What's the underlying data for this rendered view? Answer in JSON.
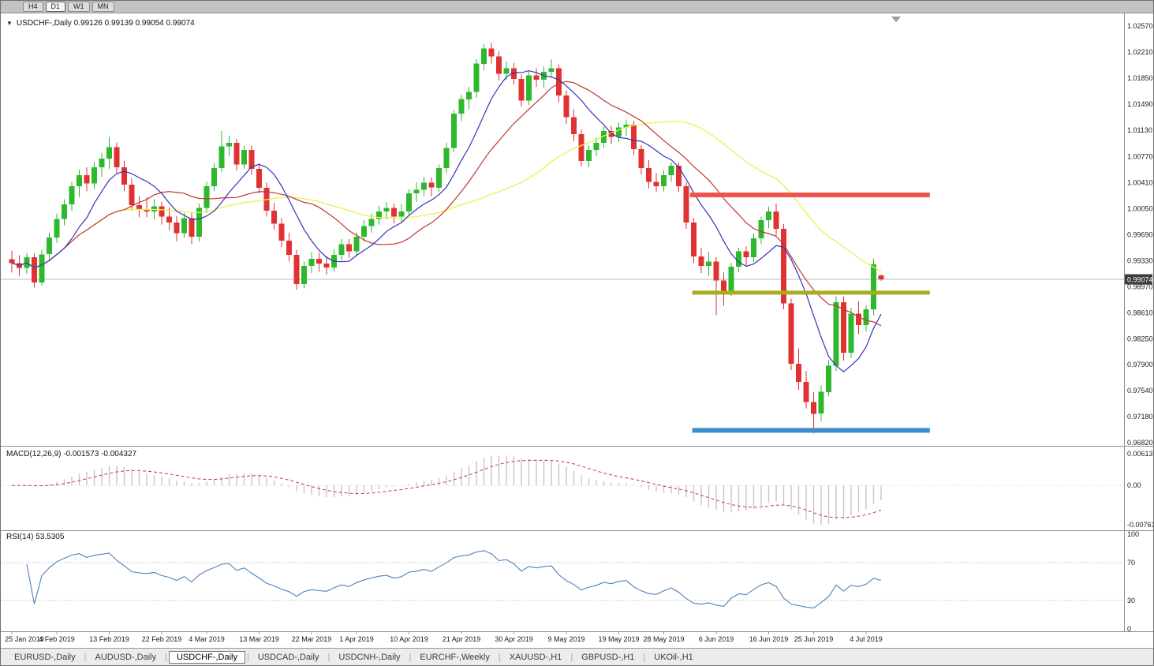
{
  "toolbar": {
    "timeframes": [
      {
        "label": "H4",
        "active": false
      },
      {
        "label": "D1",
        "active": true
      },
      {
        "label": "W1",
        "active": false
      },
      {
        "label": "MN",
        "active": false
      }
    ]
  },
  "icons": {
    "collapse": "▼",
    "shift_marker": "triangle-down"
  },
  "panels": {
    "main_label": "USDCHF-,Daily 0.99126 0.99139 0.99054 0.99074",
    "macd_label": "MACD(12,26,9) -0.001573 -0.004327",
    "rsi_label": "RSI(14) 53.5305"
  },
  "tabbar": {
    "tabs": [
      {
        "label": "EURUSD-,Daily",
        "active": false
      },
      {
        "label": "AUDUSD-,Daily",
        "active": false
      },
      {
        "label": "USDCHF-,Daily",
        "active": true
      },
      {
        "label": "USDCAD-,Daily",
        "active": false
      },
      {
        "label": "USDCNH-,Daily",
        "active": false
      },
      {
        "label": "EURCHF-,Weekly",
        "active": false
      },
      {
        "label": "XAUUSD-,H1",
        "active": false
      },
      {
        "label": "GBPUSD-,H1",
        "active": false
      },
      {
        "label": "UKOil-,H1",
        "active": false
      }
    ]
  },
  "chart_data": {
    "type": "candlestick",
    "symbol": "USDCHF-",
    "period": "Daily",
    "ohlc": {
      "open": "0.99126",
      "high": "0.99139",
      "low": "0.99054",
      "close": "0.99074"
    },
    "current_price": "0.99074",
    "y_ticks": [
      "1.02570",
      "1.02210",
      "1.01850",
      "1.01490",
      "1.01130",
      "1.00770",
      "1.00410",
      "1.00050",
      "0.99690",
      "0.99330",
      "0.98970",
      "0.98610",
      "0.98250",
      "0.97900",
      "0.97540",
      "0.97180",
      "0.96820"
    ],
    "x_ticks": [
      {
        "label": "25 Jan 2019",
        "i": 0
      },
      {
        "label": "4 Feb 2019",
        "i": 6
      },
      {
        "label": "13 Feb 2019",
        "i": 13
      },
      {
        "label": "22 Feb 2019",
        "i": 20
      },
      {
        "label": "4 Mar 2019",
        "i": 26
      },
      {
        "label": "13 Mar 2019",
        "i": 33
      },
      {
        "label": "22 Mar 2019",
        "i": 40
      },
      {
        "label": "1 Apr 2019",
        "i": 46
      },
      {
        "label": "10 Apr 2019",
        "i": 53
      },
      {
        "label": "21 Apr 2019",
        "i": 60
      },
      {
        "label": "30 Apr 2019",
        "i": 67
      },
      {
        "label": "9 May 2019",
        "i": 74
      },
      {
        "label": "19 May 2019",
        "i": 81
      },
      {
        "label": "28 May 2019",
        "i": 87
      },
      {
        "label": "6 Jun 2019",
        "i": 94
      },
      {
        "label": "16 Jun 2019",
        "i": 101
      },
      {
        "label": "25 Jun 2019",
        "i": 107
      },
      {
        "label": "4 Jul 2019",
        "i": 114
      }
    ],
    "candles": [
      [
        0.9935,
        0.9947,
        0.9917,
        0.993
      ],
      [
        0.993,
        0.9941,
        0.9912,
        0.9923
      ],
      [
        0.9923,
        0.9944,
        0.9915,
        0.9938
      ],
      [
        0.9938,
        0.9943,
        0.9896,
        0.9903
      ],
      [
        0.9903,
        0.9948,
        0.9899,
        0.9942
      ],
      [
        0.9942,
        0.9972,
        0.9932,
        0.9965
      ],
      [
        0.9965,
        0.9998,
        0.9958,
        0.9991
      ],
      [
        0.9991,
        1.0018,
        0.9982,
        1.0011
      ],
      [
        1.0011,
        1.0042,
        1.0002,
        1.0036
      ],
      [
        1.0036,
        1.0059,
        1.0021,
        1.0051
      ],
      [
        1.0051,
        1.0062,
        1.0029,
        1.004
      ],
      [
        1.004,
        1.0069,
        1.0032,
        1.0062
      ],
      [
        1.0062,
        1.0082,
        1.0049,
        1.0074
      ],
      [
        1.0074,
        1.0104,
        1.006,
        1.009
      ],
      [
        1.009,
        1.0096,
        1.0053,
        1.0062
      ],
      [
        1.0062,
        1.0071,
        1.0029,
        1.0038
      ],
      [
        1.0038,
        1.0047,
        1.0002,
        1.001
      ],
      [
        1.001,
        1.0022,
        0.9993,
        1.0004
      ],
      [
        1.0004,
        1.0021,
        0.9993,
        1.0001
      ],
      [
        1.0001,
        1.0018,
        0.999,
        1.0008
      ],
      [
        1.0008,
        1.0015,
        0.9983,
        0.9994
      ],
      [
        0.9994,
        1.0007,
        0.9975,
        0.9986
      ],
      [
        0.9986,
        0.9995,
        0.996,
        0.9971
      ],
      [
        0.9971,
        0.9999,
        0.9965,
        0.9992
      ],
      [
        0.9992,
        0.9999,
        0.9956,
        0.9966
      ],
      [
        0.9966,
        1.0012,
        0.996,
        1.0006
      ],
      [
        1.0006,
        1.0042,
        0.9999,
        1.0036
      ],
      [
        1.0036,
        1.0068,
        1.0029,
        1.0061
      ],
      [
        1.0061,
        1.0112,
        1.0055,
        1.0091
      ],
      [
        1.0091,
        1.0106,
        1.0077,
        1.0096
      ],
      [
        1.0096,
        1.0101,
        1.0058,
        1.0066
      ],
      [
        1.0066,
        1.0092,
        1.006,
        1.0086
      ],
      [
        1.0086,
        1.0092,
        1.0052,
        1.006
      ],
      [
        1.006,
        1.0067,
        1.0026,
        1.0034
      ],
      [
        1.0034,
        1.0041,
        0.9994,
        1.0002
      ],
      [
        1.0002,
        1.0013,
        0.9976,
        0.9984
      ],
      [
        0.9984,
        0.9992,
        0.9952,
        0.9961
      ],
      [
        0.9961,
        0.9972,
        0.9932,
        0.9941
      ],
      [
        0.9941,
        0.9948,
        0.9893,
        0.9901
      ],
      [
        0.9901,
        0.9932,
        0.9895,
        0.9926
      ],
      [
        0.9926,
        0.9945,
        0.9916,
        0.9936
      ],
      [
        0.9936,
        0.9944,
        0.9918,
        0.9929
      ],
      [
        0.9929,
        0.994,
        0.9914,
        0.9924
      ],
      [
        0.9924,
        0.9949,
        0.9918,
        0.9941
      ],
      [
        0.9941,
        0.9963,
        0.9933,
        0.9956
      ],
      [
        0.9956,
        0.9963,
        0.9937,
        0.9946
      ],
      [
        0.9946,
        0.9972,
        0.994,
        0.9966
      ],
      [
        0.9966,
        0.9989,
        0.9959,
        0.9981
      ],
      [
        0.9981,
        0.9998,
        0.9972,
        0.9991
      ],
      [
        0.9991,
        1.0009,
        0.9983,
        1.0001
      ],
      [
        1.0001,
        1.0014,
        0.999,
        1.0006
      ],
      [
        1.0006,
        1.0012,
        0.9985,
        0.9994
      ],
      [
        0.9994,
        1.0011,
        0.9987,
        1.0001
      ],
      [
        1.0001,
        1.0032,
        0.9995,
        1.0026
      ],
      [
        1.0026,
        1.0041,
        1.0014,
        1.0031
      ],
      [
        1.0031,
        1.0049,
        1.0022,
        1.0041
      ],
      [
        1.0041,
        1.0048,
        1.0022,
        1.0034
      ],
      [
        1.0034,
        1.0066,
        1.0028,
        1.0061
      ],
      [
        1.0061,
        1.0096,
        1.0054,
        1.0089
      ],
      [
        1.0089,
        1.0141,
        1.0083,
        1.0136
      ],
      [
        1.0136,
        1.0162,
        1.0126,
        1.0156
      ],
      [
        1.0156,
        1.0173,
        1.0142,
        1.0166
      ],
      [
        1.0166,
        1.0211,
        1.0158,
        1.0205
      ],
      [
        1.0205,
        1.0232,
        1.0196,
        1.0226
      ],
      [
        1.0226,
        1.0234,
        1.0205,
        1.0215
      ],
      [
        1.0215,
        1.0222,
        1.0182,
        1.0191
      ],
      [
        1.0191,
        1.0208,
        1.0183,
        1.0199
      ],
      [
        1.0199,
        1.0206,
        1.0176,
        1.0184
      ],
      [
        1.0184,
        1.019,
        1.0146,
        1.0154
      ],
      [
        1.0154,
        1.0195,
        1.0148,
        1.0189
      ],
      [
        1.0189,
        1.0199,
        1.0173,
        1.0183
      ],
      [
        1.0183,
        1.0201,
        1.0172,
        1.0194
      ],
      [
        1.0194,
        1.0211,
        1.0186,
        1.0199
      ],
      [
        1.0199,
        1.0204,
        1.0152,
        1.0161
      ],
      [
        1.0161,
        1.0168,
        1.0122,
        1.0131
      ],
      [
        1.0131,
        1.0142,
        1.0098,
        1.0108
      ],
      [
        1.0108,
        1.0114,
        1.0063,
        1.0071
      ],
      [
        1.0071,
        1.0092,
        1.0062,
        1.0086
      ],
      [
        1.0086,
        1.0103,
        1.0077,
        1.0096
      ],
      [
        1.0096,
        1.0118,
        1.0089,
        1.0112
      ],
      [
        1.0112,
        1.0119,
        1.0094,
        1.0104
      ],
      [
        1.0104,
        1.0124,
        1.0097,
        1.0117
      ],
      [
        1.0117,
        1.0128,
        1.0105,
        1.0121
      ],
      [
        1.0121,
        1.0126,
        1.0079,
        1.0087
      ],
      [
        1.0087,
        1.0093,
        1.0052,
        1.0061
      ],
      [
        1.0061,
        1.0072,
        1.0033,
        1.0042
      ],
      [
        1.0042,
        1.0054,
        1.0028,
        1.0036
      ],
      [
        1.0036,
        1.0058,
        1.0029,
        1.0051
      ],
      [
        1.0051,
        1.0069,
        1.0042,
        1.0064
      ],
      [
        1.0064,
        1.0069,
        1.0028,
        1.0036
      ],
      [
        1.0036,
        1.0041,
        0.9977,
        0.9986
      ],
      [
        0.9986,
        0.9992,
        0.993,
        0.9939
      ],
      [
        0.9939,
        0.9951,
        0.9916,
        0.9926
      ],
      [
        0.9926,
        0.9946,
        0.9912,
        0.9932
      ],
      [
        0.9932,
        0.9938,
        0.9858,
        0.9906
      ],
      [
        0.9906,
        0.9917,
        0.9871,
        0.9891
      ],
      [
        0.9891,
        0.993,
        0.9884,
        0.9925
      ],
      [
        0.9925,
        0.9951,
        0.9917,
        0.9946
      ],
      [
        0.9946,
        0.9953,
        0.9926,
        0.9938
      ],
      [
        0.9938,
        0.9971,
        0.9931,
        0.9964
      ],
      [
        0.9964,
        0.9994,
        0.9956,
        0.9989
      ],
      [
        0.9989,
        1.0008,
        0.9978,
        1.0001
      ],
      [
        1.0001,
        1.0012,
        0.9968,
        0.9977
      ],
      [
        0.9977,
        0.9984,
        0.9866,
        0.9874
      ],
      [
        0.9874,
        0.9881,
        0.9782,
        0.9791
      ],
      [
        0.9791,
        0.9812,
        0.9755,
        0.9766
      ],
      [
        0.9766,
        0.9781,
        0.9729,
        0.9738
      ],
      [
        0.9738,
        0.9752,
        0.9695,
        0.9722
      ],
      [
        0.9722,
        0.9761,
        0.9712,
        0.9752
      ],
      [
        0.9752,
        0.9796,
        0.9746,
        0.9788
      ],
      [
        0.9788,
        0.9884,
        0.9781,
        0.9876
      ],
      [
        0.9876,
        0.9884,
        0.9795,
        0.9806
      ],
      [
        0.9806,
        0.9868,
        0.9799,
        0.986
      ],
      [
        0.986,
        0.9877,
        0.9832,
        0.9844
      ],
      [
        0.9844,
        0.9872,
        0.9836,
        0.9866
      ],
      [
        0.9866,
        0.9936,
        0.9858,
        0.9928
      ],
      [
        0.99126,
        0.99139,
        0.99054,
        0.99074
      ]
    ],
    "colors": {
      "up": "#2db82d",
      "down": "#e03232",
      "ma_fast": "#3333bb",
      "ma_mid": "#c23535",
      "ma_slow": "#efef4e",
      "macd_hist": "#c6c6c6",
      "macd_signal": "#c63838",
      "rsi": "#4e7fbb",
      "price_line": "#b9b9b9",
      "badge_bg": "#3d3d3d"
    },
    "objects": [
      {
        "name": "resistance-line-red",
        "price": 1.0024,
        "i1": 90.5,
        "i2": 122.5,
        "color": "#f0544c",
        "width": 6
      },
      {
        "name": "support-line-olive",
        "price": 0.9889,
        "i1": 90.8,
        "i2": 122.5,
        "color": "#a9ad1d",
        "width": 5
      },
      {
        "name": "support-line-blue",
        "price": 0.9699,
        "i1": 90.8,
        "i2": 122.5,
        "color": "#3c8dcb",
        "width": 6
      }
    ],
    "macd": {
      "label": "MACD(12,26,9)",
      "values_label": "-0.001573 -0.004327",
      "scale_ticks": [
        "0.00613",
        "0.00",
        "-0.00761"
      ]
    },
    "rsi": {
      "label": "RSI(14)",
      "value": "53.5305",
      "scale_ticks": [
        "100",
        "70",
        "30",
        "0"
      ],
      "levels": [
        70,
        30
      ]
    }
  }
}
